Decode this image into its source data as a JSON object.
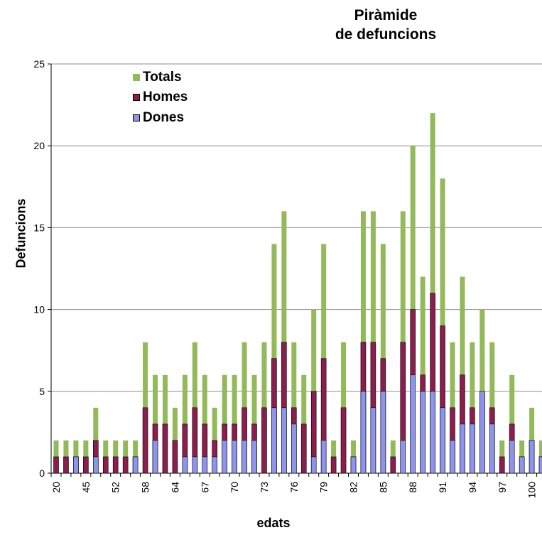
{
  "chart_data": {
    "type": "bar",
    "title_lines": [
      "Piràmide",
      "de defuncions"
    ],
    "xlabel": "edats",
    "ylabel": "Defuncions",
    "ylim": [
      0,
      25
    ],
    "yticks": [
      0,
      5,
      10,
      15,
      20,
      25
    ],
    "grid": true,
    "legend_position": "top-left",
    "categories": [
      "20",
      "",
      "",
      "45",
      "",
      "",
      "52",
      "",
      "",
      "58",
      "",
      "",
      "64",
      "",
      "",
      "67",
      "",
      "",
      "70",
      "",
      "",
      "73",
      "",
      "",
      "76",
      "",
      "",
      "79",
      "",
      "",
      "82",
      "",
      "",
      "85",
      "",
      "",
      "88",
      "",
      "",
      "91",
      "",
      "",
      "94",
      "",
      "",
      "97",
      "",
      "",
      "100",
      ""
    ],
    "series": [
      {
        "name": "Totals",
        "color": "#93b95b",
        "values": [
          2,
          2,
          2,
          2,
          4,
          2,
          2,
          2,
          2,
          8,
          6,
          6,
          4,
          6,
          8,
          6,
          4,
          6,
          6,
          8,
          6,
          8,
          14,
          16,
          8,
          6,
          10,
          14,
          2,
          8,
          2,
          16,
          16,
          14,
          2,
          16,
          20,
          12,
          22,
          18,
          8,
          12,
          8,
          10,
          8,
          2,
          6,
          2,
          4,
          2
        ]
      },
      {
        "name": "Homes",
        "color": "#8b1e4c",
        "values": [
          1,
          1,
          1,
          1,
          2,
          1,
          1,
          1,
          1,
          4,
          3,
          3,
          2,
          3,
          4,
          3,
          2,
          3,
          3,
          4,
          3,
          4,
          7,
          8,
          4,
          3,
          5,
          7,
          1,
          4,
          1,
          8,
          8,
          7,
          1,
          8,
          10,
          6,
          11,
          9,
          4,
          6,
          4,
          5,
          4,
          1,
          3,
          1,
          2,
          1
        ]
      },
      {
        "name": "Dones",
        "color": "#8e94ee",
        "values": [
          0,
          0,
          1,
          0,
          1,
          0,
          0,
          0,
          1,
          0,
          2,
          0,
          0,
          1,
          1,
          1,
          1,
          2,
          2,
          2,
          2,
          0,
          4,
          4,
          3,
          0,
          1,
          2,
          0,
          0,
          1,
          5,
          4,
          5,
          0,
          2,
          6,
          5,
          5,
          4,
          2,
          3,
          3,
          5,
          3,
          0,
          2,
          1,
          2,
          1
        ]
      }
    ]
  },
  "legend": {
    "totals": "Totals",
    "homes": "Homes",
    "dones": "Dones"
  }
}
